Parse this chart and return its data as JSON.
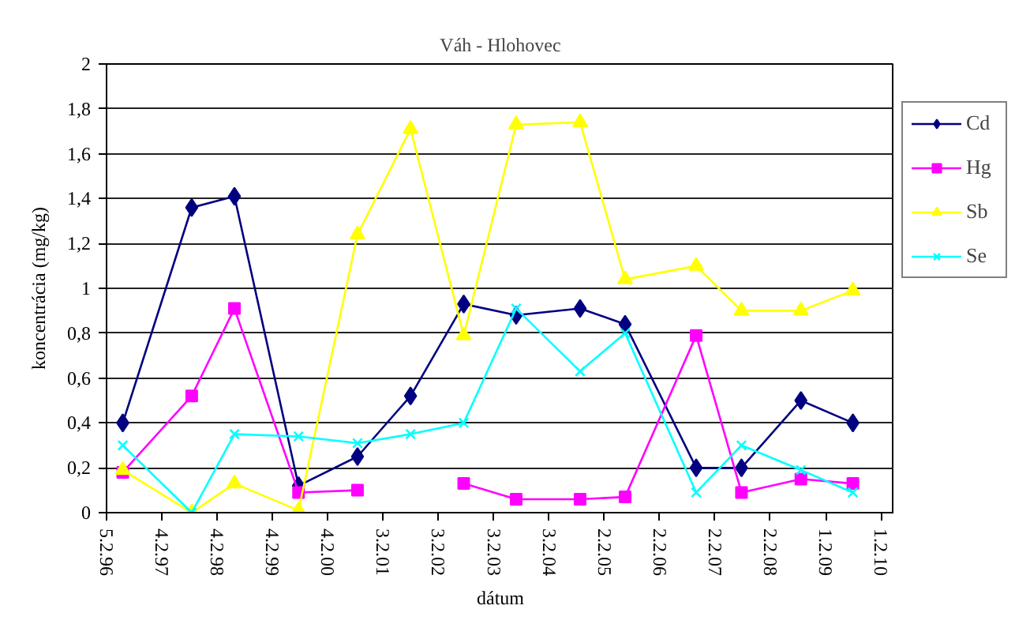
{
  "chart_data": {
    "type": "line",
    "title": "Váh - Hlohovec",
    "xlabel": "dátum",
    "ylabel": "koncentrácia (mg/kg)",
    "x": [
      "1996-05-22",
      "1997-08-20",
      "1998-05-29",
      "1999-07-26",
      "2000-08-18",
      "2001-08-03",
      "2002-07-20",
      "2003-07-01",
      "2004-08-26",
      "2005-06-19",
      "2006-10-01",
      "2007-07-27",
      "2008-08-22",
      "2009-07-31"
    ],
    "series": [
      {
        "name": "Cd",
        "color": "#000080",
        "marker": "diamond",
        "values": [
          0.4,
          1.36,
          1.41,
          0.12,
          0.25,
          0.52,
          0.93,
          0.88,
          0.91,
          0.84,
          0.2,
          0.2,
          0.5,
          0.4
        ]
      },
      {
        "name": "Hg",
        "color": "#ff00ff",
        "marker": "square",
        "values": [
          0.18,
          0.52,
          0.91,
          0.09,
          0.1,
          null,
          0.13,
          0.06,
          0.06,
          0.07,
          0.79,
          0.09,
          0.15,
          0.13
        ]
      },
      {
        "name": "Sb",
        "color": "#ffff00",
        "marker": "triangle",
        "values": [
          0.19,
          0,
          0.13,
          0.01,
          1.24,
          1.71,
          0.79,
          1.73,
          1.74,
          1.04,
          1.1,
          0.9,
          0.9,
          0.99
        ]
      },
      {
        "name": "Se",
        "color": "#00ffff",
        "marker": "cross",
        "values": [
          0.3,
          0,
          0.35,
          0.34,
          0.31,
          0.35,
          0.4,
          0.91,
          0.63,
          0.8,
          0.09,
          0.3,
          0.19,
          0.09
        ]
      }
    ],
    "xlim": [
      "1996-02-05",
      "2010-04-30"
    ],
    "xticks": [
      {
        "value": "1996-02-05",
        "label": "5.2.96"
      },
      {
        "value": "1997-02-04",
        "label": "4.2.97"
      },
      {
        "value": "1998-02-04",
        "label": "4.2.98"
      },
      {
        "value": "1999-02-04",
        "label": "4.2.99"
      },
      {
        "value": "2000-02-04",
        "label": "4.2.00"
      },
      {
        "value": "2001-02-03",
        "label": "3.2.01"
      },
      {
        "value": "2002-02-03",
        "label": "3.2.02"
      },
      {
        "value": "2003-02-03",
        "label": "3.2.03"
      },
      {
        "value": "2004-02-03",
        "label": "3.2.04"
      },
      {
        "value": "2005-02-02",
        "label": "2.2.05"
      },
      {
        "value": "2006-02-02",
        "label": "2.2.06"
      },
      {
        "value": "2007-02-02",
        "label": "2.2.07"
      },
      {
        "value": "2008-02-02",
        "label": "2.2.08"
      },
      {
        "value": "2009-02-01",
        "label": "1.2.09"
      },
      {
        "value": "2010-02-01",
        "label": "1.2.10"
      }
    ],
    "ylim": [
      0,
      2
    ],
    "yticks": [
      0,
      {
        "value": 0.2,
        "label": "0,2"
      },
      {
        "value": 0.4,
        "label": "0,4"
      },
      {
        "value": 0.6,
        "label": "0,6"
      },
      {
        "value": 0.8,
        "label": "0,8"
      },
      1,
      {
        "value": 1.2,
        "label": "1,2"
      },
      {
        "value": 1.4,
        "label": "1,4"
      },
      {
        "value": 1.6,
        "label": "1,6"
      },
      {
        "value": 1.8,
        "label": "1,8"
      },
      2
    ],
    "grid": "y",
    "legend": "right"
  }
}
